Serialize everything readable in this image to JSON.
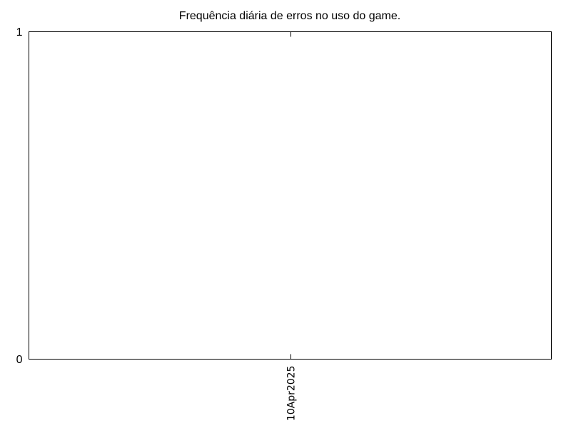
{
  "chart_data": {
    "type": "bar",
    "title": "Frequência diária de erros no uso do game.",
    "xlabel": "",
    "ylabel": "",
    "categories": [
      "10Apr2025"
    ],
    "values": [
      0
    ],
    "ylim": [
      0,
      1
    ],
    "y_ticks": [
      0,
      1
    ],
    "grid": false,
    "legend": "none",
    "colors": {
      "axis": "#000000",
      "background": "#ffffff"
    }
  }
}
